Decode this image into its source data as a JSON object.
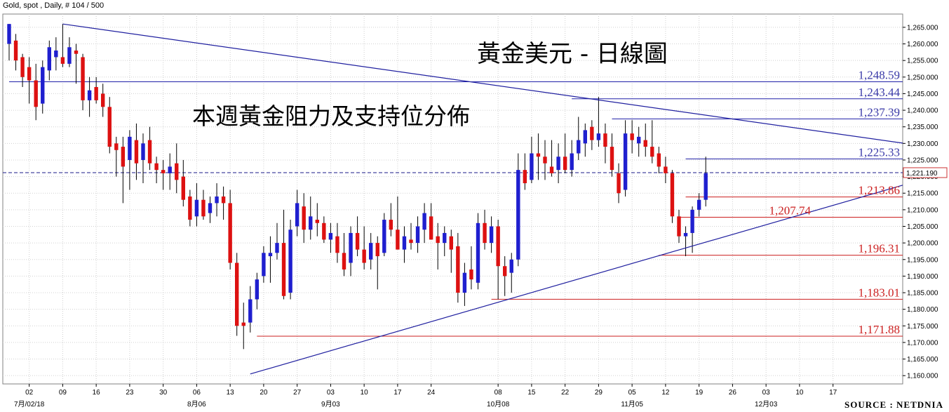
{
  "header": {
    "text": "Gold, spot , Daily, # 104 / 500"
  },
  "chart_titles": {
    "main": "黃金美元 - 日線圖",
    "sub": "本週黃金阻力及支持位分佈"
  },
  "source": "SOURCE : NETDNIA",
  "colors": {
    "bull": "#1f1fcf",
    "bear": "#dd1111",
    "resistance": "#2020a8",
    "support": "#cc1f1f",
    "trend": "#1f1f9f",
    "resistance_label": "#3a3aa8",
    "support_label": "#cc2222",
    "grid": "#d0d0d0"
  },
  "chart_data": {
    "type": "candlestick",
    "title": "黃金美元 - 日線圖",
    "subtitle": "本週黃金阻力及支持位分佈",
    "ylim": [
      1157.5,
      1269
    ],
    "y_ticks": [
      "1,160.000",
      "1,165.000",
      "1,170.000",
      "1,175.000",
      "1,180.000",
      "1,185.000",
      "1,190.000",
      "1,195.000",
      "1,200.000",
      "1,205.000",
      "1,210.000",
      "1,215.000",
      "1,220.000",
      "1,225.000",
      "1,230.000",
      "1,235.000",
      "1,240.000",
      "1,245.000",
      "1,250.000",
      "1,255.000",
      "1,260.000",
      "1,265.000"
    ],
    "x_ticks": [
      {
        "label": "02",
        "i": 3
      },
      {
        "label": "09",
        "i": 8
      },
      {
        "label": "16",
        "i": 13
      },
      {
        "label": "23",
        "i": 18
      },
      {
        "label": "30",
        "i": 23
      },
      {
        "label": "06",
        "i": 28
      },
      {
        "label": "13",
        "i": 33
      },
      {
        "label": "20",
        "i": 38
      },
      {
        "label": "27",
        "i": 43
      },
      {
        "label": "03",
        "i": 48
      },
      {
        "label": "10",
        "i": 53
      },
      {
        "label": "17",
        "i": 58
      },
      {
        "label": "24",
        "i": 63
      },
      {
        "label": "08",
        "i": 73
      },
      {
        "label": "15",
        "i": 78
      },
      {
        "label": "22",
        "i": 83
      },
      {
        "label": "29",
        "i": 88
      },
      {
        "label": "05",
        "i": 93
      },
      {
        "label": "12",
        "i": 98
      },
      {
        "label": "19",
        "i": 103
      },
      {
        "label": "26",
        "i": 108
      },
      {
        "label": "03",
        "i": 113
      },
      {
        "label": "10",
        "i": 118
      },
      {
        "label": "17",
        "i": 123
      }
    ],
    "x_months": [
      {
        "label": "7月/02/18",
        "i": 3
      },
      {
        "label": "8月06",
        "i": 28
      },
      {
        "label": "9月03",
        "i": 48
      },
      {
        "label": "10月08",
        "i": 73
      },
      {
        "label": "11月05",
        "i": 93
      },
      {
        "label": "12月03",
        "i": 113
      }
    ],
    "last_price": "1,221.190",
    "last_price_value": 1221.19,
    "resistance_levels": [
      {
        "label": "1,248.59",
        "value": 1248.59,
        "from_i": 0
      },
      {
        "label": "1,243.44",
        "value": 1243.44,
        "from_i": 84
      },
      {
        "label": "1,237.39",
        "value": 1237.39,
        "from_i": 90
      },
      {
        "label": "1,225.33",
        "value": 1225.33,
        "from_i": 101
      }
    ],
    "support_levels": [
      {
        "label": "1,213.86",
        "value": 1213.86,
        "from_i": 101
      },
      {
        "label": "1,207.74",
        "value": 1207.74,
        "from_i": 100
      },
      {
        "label": "1,196.31",
        "value": 1196.31,
        "from_i": 97
      },
      {
        "label": "1,183.01",
        "value": 1183.01,
        "from_i": 72
      },
      {
        "label": "1,171.88",
        "value": 1171.88,
        "from_i": 37
      }
    ],
    "trendlines": [
      {
        "name": "upper",
        "from": {
          "i": 8,
          "v": 1266.0
        },
        "to": {
          "i": 125,
          "v": 1232.5
        }
      },
      {
        "name": "lower",
        "from": {
          "i": 36,
          "v": 1160.5
        },
        "to": {
          "i": 125,
          "v": 1212.5
        }
      }
    ],
    "candles": [
      {
        "o": 1260,
        "h": 1266,
        "l": 1255,
        "c": 1266
      },
      {
        "o": 1261,
        "h": 1263,
        "l": 1252,
        "c": 1255
      },
      {
        "o": 1256,
        "h": 1257,
        "l": 1247,
        "c": 1250
      },
      {
        "o": 1253,
        "h": 1256,
        "l": 1242,
        "c": 1249
      },
      {
        "o": 1249,
        "h": 1254,
        "l": 1237,
        "c": 1241
      },
      {
        "o": 1242,
        "h": 1255,
        "l": 1239,
        "c": 1253
      },
      {
        "o": 1252,
        "h": 1261,
        "l": 1249,
        "c": 1259
      },
      {
        "o": 1256,
        "h": 1262,
        "l": 1252,
        "c": 1258
      },
      {
        "o": 1256,
        "h": 1266,
        "l": 1253,
        "c": 1254
      },
      {
        "o": 1254,
        "h": 1262,
        "l": 1253,
        "c": 1259
      },
      {
        "o": 1258,
        "h": 1260,
        "l": 1248,
        "c": 1257
      },
      {
        "o": 1256,
        "h": 1257,
        "l": 1240,
        "c": 1243
      },
      {
        "o": 1243,
        "h": 1250,
        "l": 1238,
        "c": 1246
      },
      {
        "o": 1247,
        "h": 1250,
        "l": 1242,
        "c": 1243
      },
      {
        "o": 1245,
        "h": 1248,
        "l": 1238,
        "c": 1241
      },
      {
        "o": 1241,
        "h": 1244,
        "l": 1227,
        "c": 1229
      },
      {
        "o": 1230,
        "h": 1232,
        "l": 1220,
        "c": 1228
      },
      {
        "o": 1229,
        "h": 1232,
        "l": 1212,
        "c": 1223
      },
      {
        "o": 1225,
        "h": 1234,
        "l": 1216,
        "c": 1232
      },
      {
        "o": 1231,
        "h": 1236,
        "l": 1219,
        "c": 1224
      },
      {
        "o": 1225,
        "h": 1233,
        "l": 1218,
        "c": 1230
      },
      {
        "o": 1231,
        "h": 1235,
        "l": 1222,
        "c": 1224
      },
      {
        "o": 1224,
        "h": 1226,
        "l": 1218,
        "c": 1222
      },
      {
        "o": 1222,
        "h": 1225,
        "l": 1216,
        "c": 1221
      },
      {
        "o": 1221,
        "h": 1227,
        "l": 1216,
        "c": 1223
      },
      {
        "o": 1224,
        "h": 1230,
        "l": 1215,
        "c": 1219
      },
      {
        "o": 1220,
        "h": 1225,
        "l": 1211,
        "c": 1213
      },
      {
        "o": 1214,
        "h": 1216,
        "l": 1205,
        "c": 1207
      },
      {
        "o": 1208,
        "h": 1218,
        "l": 1205,
        "c": 1213
      },
      {
        "o": 1213,
        "h": 1216,
        "l": 1207,
        "c": 1208
      },
      {
        "o": 1209,
        "h": 1214,
        "l": 1206,
        "c": 1212
      },
      {
        "o": 1212,
        "h": 1218,
        "l": 1208,
        "c": 1214
      },
      {
        "o": 1214,
        "h": 1217,
        "l": 1207,
        "c": 1212
      },
      {
        "o": 1212,
        "h": 1216,
        "l": 1192,
        "c": 1194
      },
      {
        "o": 1194,
        "h": 1197,
        "l": 1172,
        "c": 1175
      },
      {
        "o": 1176,
        "h": 1182,
        "l": 1168,
        "c": 1175
      },
      {
        "o": 1176,
        "h": 1187,
        "l": 1173,
        "c": 1183
      },
      {
        "o": 1183,
        "h": 1191,
        "l": 1180,
        "c": 1189
      },
      {
        "o": 1190,
        "h": 1199,
        "l": 1188,
        "c": 1197
      },
      {
        "o": 1196,
        "h": 1202,
        "l": 1188,
        "c": 1197
      },
      {
        "o": 1197,
        "h": 1206,
        "l": 1195,
        "c": 1200
      },
      {
        "o": 1200,
        "h": 1210,
        "l": 1183,
        "c": 1184
      },
      {
        "o": 1185,
        "h": 1207,
        "l": 1183,
        "c": 1204
      },
      {
        "o": 1205,
        "h": 1216,
        "l": 1202,
        "c": 1212
      },
      {
        "o": 1211,
        "h": 1215,
        "l": 1200,
        "c": 1204
      },
      {
        "o": 1204,
        "h": 1214,
        "l": 1201,
        "c": 1208
      },
      {
        "o": 1207,
        "h": 1212,
        "l": 1202,
        "c": 1206
      },
      {
        "o": 1206,
        "h": 1208,
        "l": 1200,
        "c": 1201
      },
      {
        "o": 1201,
        "h": 1206,
        "l": 1197,
        "c": 1203
      },
      {
        "o": 1202,
        "h": 1206,
        "l": 1194,
        "c": 1197
      },
      {
        "o": 1197,
        "h": 1203,
        "l": 1190,
        "c": 1192
      },
      {
        "o": 1194,
        "h": 1205,
        "l": 1190,
        "c": 1203
      },
      {
        "o": 1203,
        "h": 1208,
        "l": 1196,
        "c": 1198
      },
      {
        "o": 1198,
        "h": 1205,
        "l": 1192,
        "c": 1194
      },
      {
        "o": 1195,
        "h": 1203,
        "l": 1192,
        "c": 1200
      },
      {
        "o": 1200,
        "h": 1202,
        "l": 1186,
        "c": 1196
      },
      {
        "o": 1197,
        "h": 1209,
        "l": 1196,
        "c": 1207
      },
      {
        "o": 1207,
        "h": 1212,
        "l": 1202,
        "c": 1204
      },
      {
        "o": 1204,
        "h": 1214,
        "l": 1198,
        "c": 1198
      },
      {
        "o": 1198,
        "h": 1205,
        "l": 1194,
        "c": 1202
      },
      {
        "o": 1201,
        "h": 1206,
        "l": 1198,
        "c": 1200
      },
      {
        "o": 1200,
        "h": 1208,
        "l": 1197,
        "c": 1205
      },
      {
        "o": 1204,
        "h": 1212,
        "l": 1200,
        "c": 1209
      },
      {
        "o": 1208,
        "h": 1212,
        "l": 1201,
        "c": 1201
      },
      {
        "o": 1202,
        "h": 1206,
        "l": 1192,
        "c": 1200
      },
      {
        "o": 1200,
        "h": 1205,
        "l": 1196,
        "c": 1203
      },
      {
        "o": 1202,
        "h": 1204,
        "l": 1191,
        "c": 1198
      },
      {
        "o": 1199,
        "h": 1203,
        "l": 1182,
        "c": 1185
      },
      {
        "o": 1185,
        "h": 1194,
        "l": 1181,
        "c": 1191
      },
      {
        "o": 1192,
        "h": 1199,
        "l": 1186,
        "c": 1189
      },
      {
        "o": 1188,
        "h": 1209,
        "l": 1186,
        "c": 1206
      },
      {
        "o": 1206,
        "h": 1210,
        "l": 1198,
        "c": 1200
      },
      {
        "o": 1200,
        "h": 1208,
        "l": 1197,
        "c": 1205
      },
      {
        "o": 1205,
        "h": 1207,
        "l": 1183,
        "c": 1193
      },
      {
        "o": 1193,
        "h": 1196,
        "l": 1184,
        "c": 1190
      },
      {
        "o": 1191,
        "h": 1197,
        "l": 1185,
        "c": 1195
      },
      {
        "o": 1195,
        "h": 1227,
        "l": 1193,
        "c": 1222
      },
      {
        "o": 1222,
        "h": 1227,
        "l": 1216,
        "c": 1218
      },
      {
        "o": 1219,
        "h": 1232,
        "l": 1218,
        "c": 1227
      },
      {
        "o": 1227,
        "h": 1233,
        "l": 1219,
        "c": 1226
      },
      {
        "o": 1226,
        "h": 1231,
        "l": 1219,
        "c": 1224
      },
      {
        "o": 1223,
        "h": 1231,
        "l": 1220,
        "c": 1221
      },
      {
        "o": 1222,
        "h": 1230,
        "l": 1218,
        "c": 1226
      },
      {
        "o": 1226,
        "h": 1233,
        "l": 1221,
        "c": 1222
      },
      {
        "o": 1222,
        "h": 1231,
        "l": 1220,
        "c": 1227
      },
      {
        "o": 1227,
        "h": 1238,
        "l": 1225,
        "c": 1231
      },
      {
        "o": 1230,
        "h": 1236,
        "l": 1226,
        "c": 1234
      },
      {
        "o": 1235,
        "h": 1237,
        "l": 1228,
        "c": 1231
      },
      {
        "o": 1231,
        "h": 1244,
        "l": 1229,
        "c": 1233
      },
      {
        "o": 1233,
        "h": 1236,
        "l": 1224,
        "c": 1229
      },
      {
        "o": 1229,
        "h": 1233,
        "l": 1220,
        "c": 1222
      },
      {
        "o": 1221,
        "h": 1224,
        "l": 1212,
        "c": 1215
      },
      {
        "o": 1216,
        "h": 1237,
        "l": 1214,
        "c": 1233
      },
      {
        "o": 1233,
        "h": 1237,
        "l": 1227,
        "c": 1231
      },
      {
        "o": 1230,
        "h": 1235,
        "l": 1226,
        "c": 1232
      },
      {
        "o": 1231,
        "h": 1236,
        "l": 1226,
        "c": 1229
      },
      {
        "o": 1229,
        "h": 1237,
        "l": 1224,
        "c": 1226
      },
      {
        "o": 1227,
        "h": 1229,
        "l": 1221,
        "c": 1223
      },
      {
        "o": 1223,
        "h": 1226,
        "l": 1218,
        "c": 1221
      },
      {
        "o": 1221,
        "h": 1222,
        "l": 1206,
        "c": 1208
      },
      {
        "o": 1208,
        "h": 1210,
        "l": 1200,
        "c": 1202
      },
      {
        "o": 1202,
        "h": 1205,
        "l": 1196,
        "c": 1203
      },
      {
        "o": 1203,
        "h": 1211,
        "l": 1197,
        "c": 1210
      },
      {
        "o": 1210,
        "h": 1215,
        "l": 1208,
        "c": 1213
      },
      {
        "o": 1213,
        "h": 1226,
        "l": 1211,
        "c": 1221
      }
    ]
  }
}
